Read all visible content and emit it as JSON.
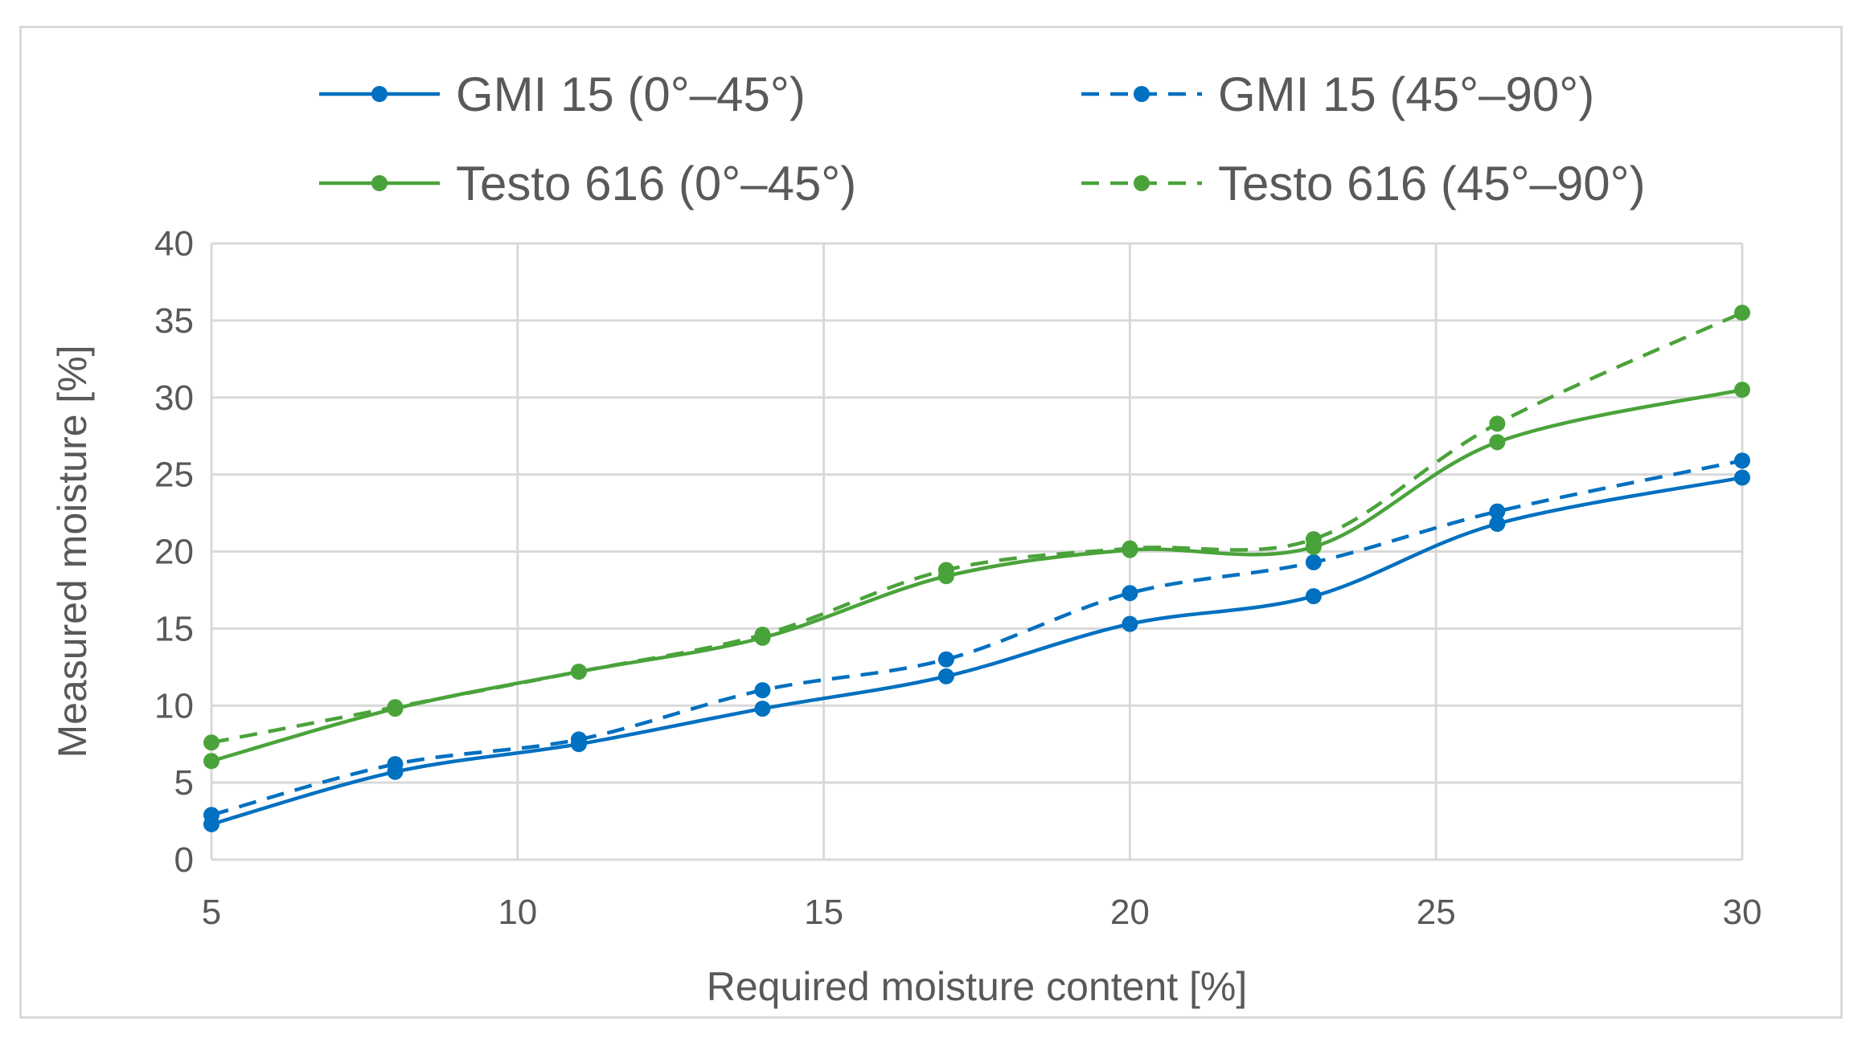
{
  "chart_data": {
    "type": "line",
    "title": "",
    "xlabel": "Required moisture content [%]",
    "ylabel": "Measured moisture [%]",
    "xlim": [
      5,
      30
    ],
    "ylim": [
      0,
      40
    ],
    "xticks": [
      5,
      10,
      15,
      20,
      25,
      30
    ],
    "yticks": [
      0,
      5,
      10,
      15,
      20,
      25,
      30,
      35,
      40
    ],
    "grid": true,
    "legend_position": "top",
    "x": [
      5,
      8,
      11,
      14,
      17,
      20,
      23,
      26,
      30
    ],
    "series": [
      {
        "name": "GMI 15 (0°–45°)",
        "color": "#0070c0",
        "style": "solid",
        "values": [
          2.3,
          5.7,
          7.5,
          9.8,
          11.9,
          15.3,
          17.1,
          21.8,
          24.8
        ]
      },
      {
        "name": "GMI 15 (45°–90°)",
        "color": "#0070c0",
        "style": "dashed",
        "values": [
          2.9,
          6.2,
          7.8,
          11.0,
          13.0,
          17.3,
          19.3,
          22.6,
          25.9
        ]
      },
      {
        "name": "Testo 616 (0°–45°)",
        "color": "#4aa33a",
        "style": "solid",
        "values": [
          6.4,
          9.8,
          12.2,
          14.4,
          18.4,
          20.1,
          20.3,
          27.1,
          30.5
        ]
      },
      {
        "name": "Testo 616 (45°–90°)",
        "color": "#4aa33a",
        "style": "dashed",
        "values": [
          7.6,
          9.9,
          12.2,
          14.6,
          18.8,
          20.2,
          20.8,
          28.3,
          35.5
        ]
      }
    ]
  }
}
